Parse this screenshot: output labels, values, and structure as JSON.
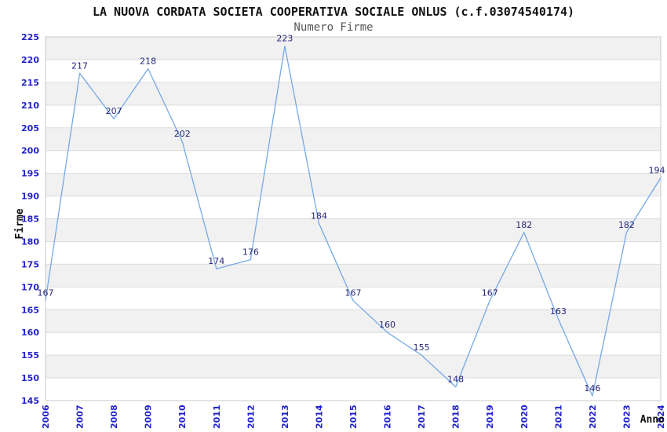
{
  "chart_data": {
    "type": "line",
    "title": "LA NUOVA CORDATA SOCIETA COOPERATIVA SOCIALE ONLUS (c.f.03074540174)",
    "subtitle": "Numero Firme",
    "xlabel": "Anno",
    "ylabel": "Firme",
    "categories": [
      "2006",
      "2007",
      "2008",
      "2009",
      "2010",
      "2011",
      "2012",
      "2013",
      "2014",
      "2015",
      "2016",
      "2017",
      "2018",
      "2019",
      "2020",
      "2021",
      "2022",
      "2023",
      "2024"
    ],
    "values": [
      167,
      217,
      207,
      218,
      202,
      174,
      176,
      223,
      184,
      167,
      160,
      155,
      148,
      167,
      182,
      163,
      146,
      182,
      194
    ],
    "ylim": [
      145,
      225
    ],
    "ytick_step": 5,
    "grid": true,
    "legend_position": "none",
    "colors": {
      "line": "#75a9e6",
      "tick_labels": "#2222cc",
      "data_labels": "#242478",
      "band_gray": "#f1f1f1",
      "band_white": "#ffffff",
      "gridline": "#dcdcdc",
      "plot_border": "#c8c8c8",
      "title": "#111111",
      "subtitle": "#555555",
      "axis_title": "#111111"
    }
  }
}
